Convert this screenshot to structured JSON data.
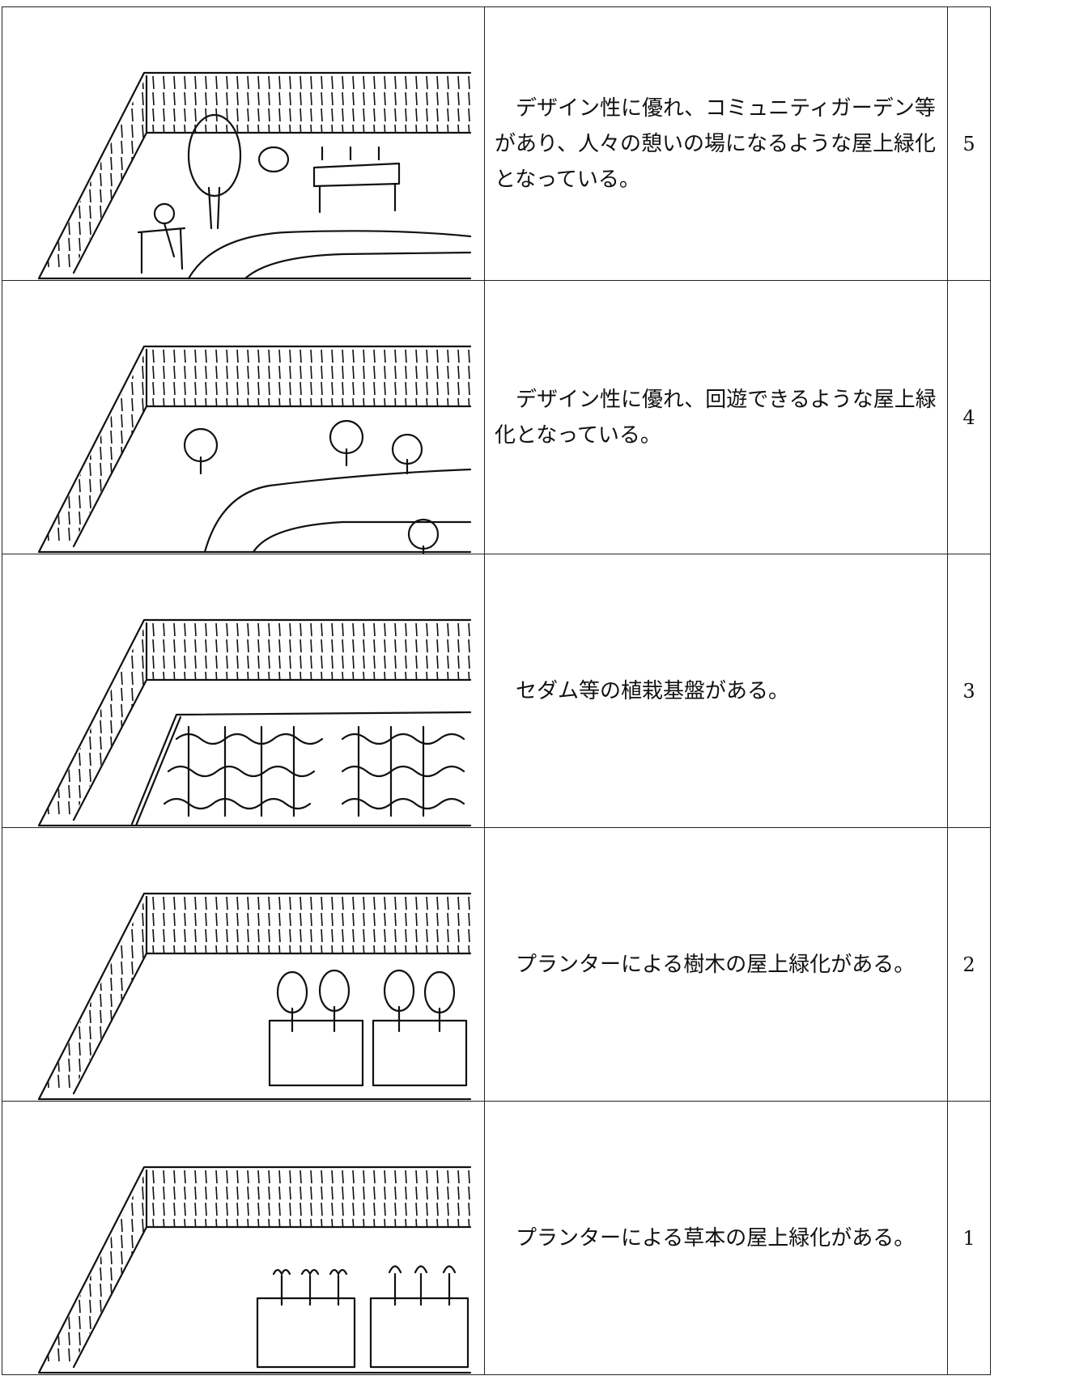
{
  "table": {
    "rows": [
      {
        "description": "デザイン性に優れ、コミュニティガーデン等があり、人々の憩いの場になるような屋上緑化となっている。",
        "score": 5
      },
      {
        "description": "デザイン性に優れ、回遊できるような屋上緑化となっている。",
        "score": 4
      },
      {
        "description": "セダム等の植栽基盤がある。",
        "score": 3
      },
      {
        "description": "プランターによる樹木の屋上緑化がある。",
        "score": 2
      },
      {
        "description": "プランターによる草本の屋上緑化がある。",
        "score": 1
      }
    ]
  }
}
